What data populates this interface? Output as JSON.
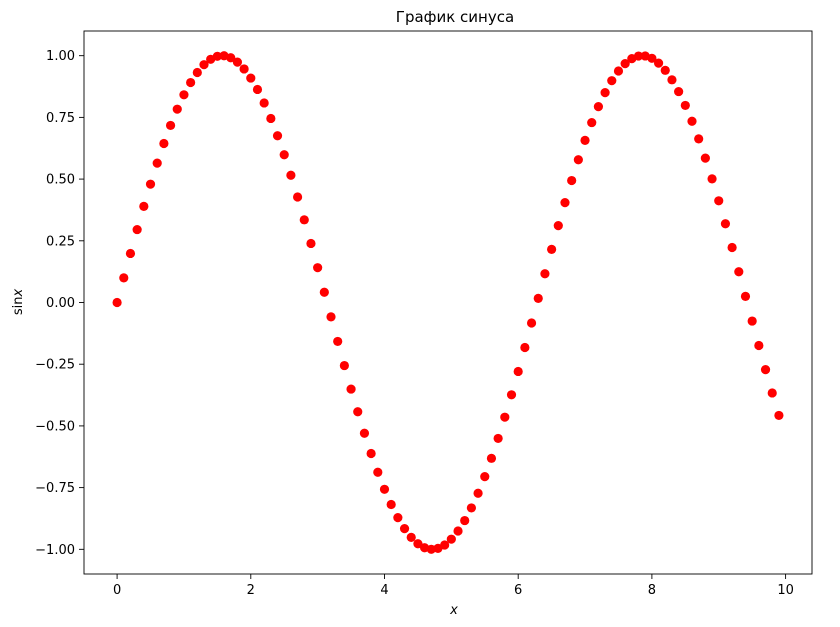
{
  "chart_data": {
    "type": "scatter",
    "title": "График синуса",
    "xlabel": "x",
    "ylabel_prefix": "sin",
    "ylabel_var": "x",
    "xlim": [
      -0.495,
      10.395
    ],
    "ylim": [
      -1.1,
      1.1
    ],
    "xticks": [
      0,
      2,
      4,
      6,
      8,
      10
    ],
    "xtick_labels": [
      "0",
      "2",
      "4",
      "6",
      "8",
      "10"
    ],
    "yticks": [
      -1.0,
      -0.75,
      -0.5,
      -0.25,
      0.0,
      0.25,
      0.5,
      0.75,
      1.0
    ],
    "ytick_labels": [
      "−1.00",
      "−0.75",
      "−0.50",
      "−0.25",
      "0.00",
      "0.25",
      "0.50",
      "0.75",
      "1.00"
    ],
    "grid": false,
    "marker_color": "#ff0000",
    "x": [
      0.0,
      0.1,
      0.2,
      0.3,
      0.4,
      0.5,
      0.6,
      0.7,
      0.8,
      0.9,
      1.0,
      1.1,
      1.2,
      1.3,
      1.4,
      1.5,
      1.6,
      1.7,
      1.8,
      1.9,
      2.0,
      2.1,
      2.2,
      2.3,
      2.4,
      2.5,
      2.6,
      2.7,
      2.8,
      2.9,
      3.0,
      3.1,
      3.2,
      3.3,
      3.4,
      3.5,
      3.6,
      3.7,
      3.8,
      3.9,
      4.0,
      4.1,
      4.2,
      4.3,
      4.4,
      4.5,
      4.6,
      4.7,
      4.8,
      4.9,
      5.0,
      5.1,
      5.2,
      5.3,
      5.4,
      5.5,
      5.6,
      5.7,
      5.8,
      5.9,
      6.0,
      6.1,
      6.2,
      6.3,
      6.4,
      6.5,
      6.6,
      6.7,
      6.8,
      6.9,
      7.0,
      7.1,
      7.2,
      7.3,
      7.4,
      7.5,
      7.6,
      7.7,
      7.8,
      7.9,
      8.0,
      8.1,
      8.2,
      8.3,
      8.4,
      8.5,
      8.6,
      8.7,
      8.8,
      8.9,
      9.0,
      9.1,
      9.2,
      9.3,
      9.4,
      9.5,
      9.6,
      9.7,
      9.8,
      9.9
    ],
    "y": [
      0.0,
      0.0998,
      0.1987,
      0.2955,
      0.3894,
      0.4794,
      0.5646,
      0.6442,
      0.7174,
      0.7833,
      0.8415,
      0.8912,
      0.932,
      0.9636,
      0.9854,
      0.9975,
      0.9996,
      0.9917,
      0.9738,
      0.9463,
      0.9093,
      0.8632,
      0.8085,
      0.7457,
      0.6755,
      0.5985,
      0.5155,
      0.4274,
      0.335,
      0.2392,
      0.1411,
      0.0416,
      -0.0584,
      -0.1577,
      -0.2555,
      -0.3508,
      -0.4425,
      -0.5298,
      -0.6119,
      -0.6878,
      -0.7568,
      -0.8183,
      -0.8716,
      -0.9162,
      -0.9516,
      -0.9775,
      -0.9937,
      -0.9999,
      -0.9962,
      -0.9825,
      -0.9589,
      -0.9258,
      -0.8835,
      -0.8323,
      -0.7728,
      -0.7055,
      -0.6313,
      -0.5507,
      -0.4646,
      -0.3739,
      -0.2794,
      -0.1822,
      -0.0831,
      0.0168,
      0.1165,
      0.2151,
      0.3115,
      0.4048,
      0.4941,
      0.5784,
      0.657,
      0.729,
      0.7937,
      0.8504,
      0.8987,
      0.938,
      0.9679,
      0.9882,
      0.9985,
      0.9989,
      0.9894,
      0.9699,
      0.9407,
      0.9022,
      0.8546,
      0.7985,
      0.7344,
      0.663,
      0.585,
      0.501,
      0.4121,
      0.319,
      0.2229,
      0.1245,
      0.0248,
      -0.0752,
      -0.1743,
      -0.2718,
      -0.3665,
      -0.4575
    ]
  }
}
